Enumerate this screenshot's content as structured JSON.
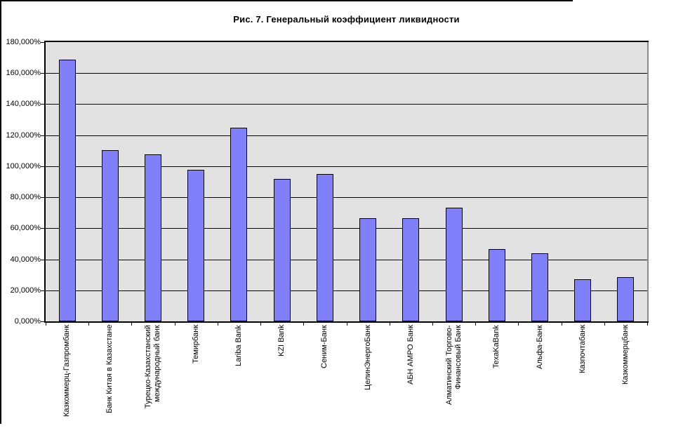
{
  "chart_data": {
    "type": "bar",
    "title": "Рис. 7. Генеральный коэффициент ликвидности",
    "xlabel": "",
    "ylabel": "",
    "categories": [
      "Казкоммерц-Газпромбанк",
      "Банк Китая в Казахстане",
      "Турецко-Казахстанский\nмеждународный банк",
      "Темирбанк",
      "Lariba Bank",
      "KZI Bank",
      "Сеним-Банк",
      "ЦелинЭнергоБанк",
      "АБН АМРО Банк",
      "Алматинский Торгово-\nФинансовый Банк",
      "TexaKaBank",
      "Альфа-Банк",
      "Казпочтабанк",
      "Казкоммерцбанк"
    ],
    "values": [
      168.5,
      110.5,
      107.8,
      97.8,
      124.6,
      92.0,
      94.8,
      66.7,
      66.6,
      73.3,
      46.5,
      43.7,
      27.1,
      28.3
    ],
    "values_unit": "percent, displayed with decimal comma (e.g. 168,500%)",
    "ylim": [
      0,
      180
    ],
    "ytick_step": 20,
    "ytick_labels_top_to_bottom": [
      "180,000%",
      "160,000%",
      "140,000%",
      "120,000%",
      "100,000%",
      "80,000%",
      "60,000%",
      "40,000%",
      "20,000%",
      "0,000%"
    ],
    "grid": true,
    "legend": "none",
    "colors": {
      "bar_fill": "#8080FA",
      "bar_border": "#000000",
      "plot_bg": "#E2E2E2",
      "grid": "#000000",
      "axis": "#000000",
      "plot_right_border": "#8C8C8C",
      "page_bg": "#FFFFFF",
      "text": "#000000"
    }
  }
}
